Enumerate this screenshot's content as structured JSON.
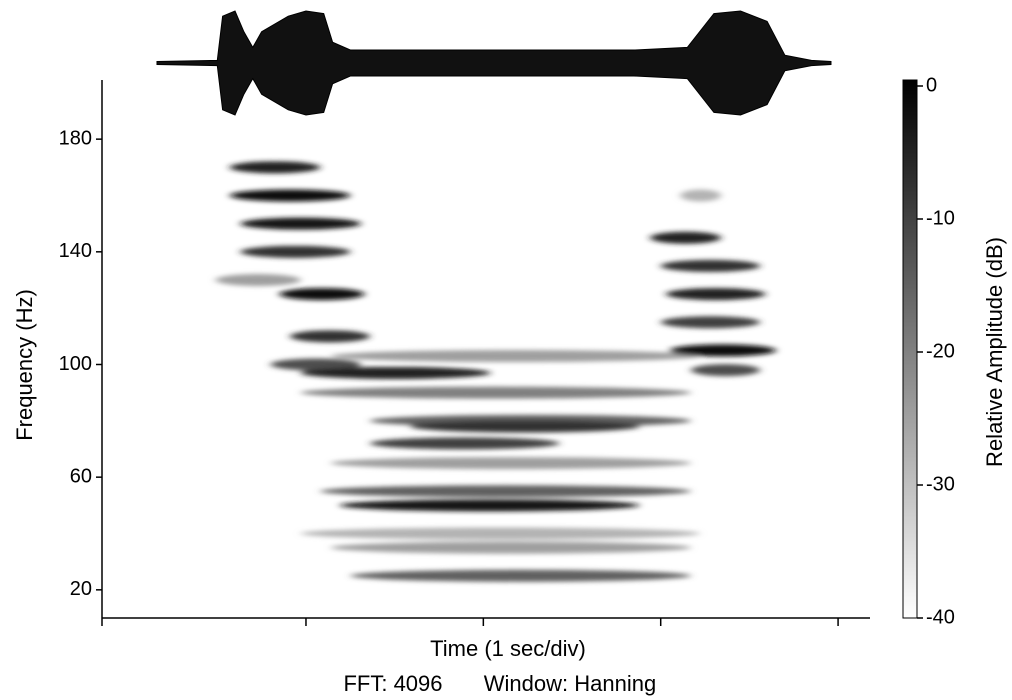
{
  "chart_data": {
    "type": "spectrogram",
    "ylabel": "Frequency (Hz)",
    "xlabel": "Time (1 sec/div)",
    "fft_note": "FFT: 4096",
    "window_note": "Window: Hanning",
    "xlim": [
      0,
      4.33
    ],
    "xticks": [
      0,
      1.15,
      2.15,
      3.15,
      4.15
    ],
    "ylim": [
      10,
      201
    ],
    "yticks": [
      20,
      60,
      100,
      140,
      180
    ],
    "colorbar": {
      "label": "Relative Amplitude (dB)",
      "lim": [
        -40,
        0
      ],
      "ticks": [
        0,
        -10,
        -20,
        -30,
        -40
      ]
    },
    "waveform": {
      "t": [
        0.31,
        0.65,
        0.68,
        0.75,
        0.8,
        0.85,
        0.9,
        1.05,
        1.15,
        1.25,
        1.3,
        1.4,
        2.0,
        2.5,
        3.0,
        3.3,
        3.45,
        3.6,
        3.75,
        3.85,
        4.0,
        4.11
      ],
      "amp": [
        0.03,
        0.05,
        0.9,
        1.0,
        0.6,
        0.3,
        0.6,
        0.9,
        1.0,
        0.95,
        0.4,
        0.25,
        0.25,
        0.25,
        0.25,
        0.3,
        0.95,
        1.0,
        0.8,
        0.15,
        0.05,
        0.03
      ]
    },
    "streaks": [
      {
        "t0": 0.72,
        "t1": 1.23,
        "freq": 170,
        "level": -5
      },
      {
        "t0": 0.72,
        "t1": 1.4,
        "freq": 160,
        "level": -2
      },
      {
        "t0": 0.78,
        "t1": 1.46,
        "freq": 150,
        "level": -3
      },
      {
        "t0": 0.78,
        "t1": 1.4,
        "freq": 140,
        "level": -8
      },
      {
        "t0": 0.64,
        "t1": 1.12,
        "freq": 130,
        "level": -25
      },
      {
        "t0": 1.0,
        "t1": 1.48,
        "freq": 125,
        "level": -2
      },
      {
        "t0": 1.06,
        "t1": 1.51,
        "freq": 110,
        "level": -8
      },
      {
        "t0": 0.95,
        "t1": 1.46,
        "freq": 100,
        "level": -12
      },
      {
        "t0": 1.29,
        "t1": 3.37,
        "freq": 103,
        "level": -25
      },
      {
        "t0": 1.12,
        "t1": 2.19,
        "freq": 97,
        "level": -5
      },
      {
        "t0": 1.12,
        "t1": 3.32,
        "freq": 90,
        "level": -20
      },
      {
        "t0": 1.51,
        "t1": 3.32,
        "freq": 80,
        "level": -15
      },
      {
        "t0": 1.74,
        "t1": 3.03,
        "freq": 78,
        "level": -8
      },
      {
        "t0": 1.51,
        "t1": 2.58,
        "freq": 72,
        "level": -10
      },
      {
        "t0": 1.29,
        "t1": 3.32,
        "freq": 65,
        "level": -25
      },
      {
        "t0": 1.23,
        "t1": 3.32,
        "freq": 55,
        "level": -15
      },
      {
        "t0": 1.34,
        "t1": 3.03,
        "freq": 50,
        "level": -3
      },
      {
        "t0": 1.12,
        "t1": 3.37,
        "freq": 40,
        "level": -28
      },
      {
        "t0": 1.29,
        "t1": 3.32,
        "freq": 35,
        "level": -25
      },
      {
        "t0": 1.4,
        "t1": 3.32,
        "freq": 25,
        "level": -15
      },
      {
        "t0": 3.26,
        "t1": 3.49,
        "freq": 160,
        "level": -28
      },
      {
        "t0": 3.09,
        "t1": 3.49,
        "freq": 145,
        "level": -5
      },
      {
        "t0": 3.15,
        "t1": 3.71,
        "freq": 135,
        "level": -8
      },
      {
        "t0": 3.18,
        "t1": 3.74,
        "freq": 125,
        "level": -5
      },
      {
        "t0": 3.15,
        "t1": 3.71,
        "freq": 115,
        "level": -10
      },
      {
        "t0": 3.2,
        "t1": 3.8,
        "freq": 105,
        "level": -2
      },
      {
        "t0": 3.32,
        "t1": 3.71,
        "freq": 98,
        "level": -12
      }
    ]
  }
}
